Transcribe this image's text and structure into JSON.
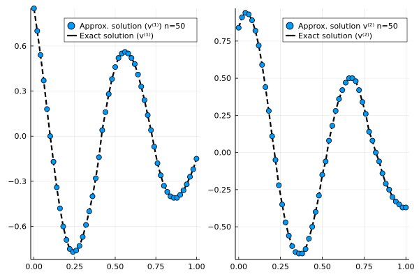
{
  "chart_data": [
    {
      "type": "line",
      "xlim": [
        -0.02,
        1.02
      ],
      "ylim": [
        -0.82,
        0.85
      ],
      "x_ticks": [
        0.0,
        0.25,
        0.5,
        0.75,
        1.0
      ],
      "x_tick_labels": [
        "0.00",
        "0.25",
        "0.50",
        "0.75",
        "1.00"
      ],
      "y_ticks": [
        -0.6,
        -0.3,
        0.0,
        0.3,
        0.6
      ],
      "y_tick_labels": [
        "−0.6",
        "−0.3",
        "0.0",
        "0.3",
        "0.6"
      ],
      "grid": true,
      "legend_position": "top-right",
      "series": [
        {
          "name": "Approx. solution (v⁽¹⁾) n=50",
          "kind": "scatter",
          "color": "#009AFA",
          "x": [
            0.0,
            0.02,
            0.04,
            0.06,
            0.08,
            0.1,
            0.12,
            0.14,
            0.16,
            0.18,
            0.2,
            0.22,
            0.24,
            0.26,
            0.28,
            0.3,
            0.32,
            0.34,
            0.36,
            0.38,
            0.4,
            0.42,
            0.44,
            0.46,
            0.48,
            0.5,
            0.52,
            0.54,
            0.56,
            0.58,
            0.6,
            0.62,
            0.64,
            0.66,
            0.68,
            0.7,
            0.72,
            0.74,
            0.76,
            0.78,
            0.8,
            0.82,
            0.84,
            0.86,
            0.88,
            0.9,
            0.92,
            0.94,
            0.96,
            0.98,
            1.0
          ],
          "y": [
            0.85,
            0.7,
            0.54,
            0.37,
            0.18,
            0.0,
            -0.17,
            -0.34,
            -0.48,
            -0.6,
            -0.69,
            -0.75,
            -0.77,
            -0.76,
            -0.73,
            -0.67,
            -0.59,
            -0.5,
            -0.4,
            -0.28,
            -0.14,
            0.04,
            0.16,
            0.28,
            0.38,
            0.46,
            0.52,
            0.55,
            0.56,
            0.55,
            0.52,
            0.48,
            0.41,
            0.33,
            0.24,
            0.14,
            0.04,
            -0.07,
            -0.18,
            -0.26,
            -0.33,
            -0.37,
            -0.4,
            -0.41,
            -0.41,
            -0.39,
            -0.36,
            -0.32,
            -0.27,
            -0.22,
            -0.15
          ]
        },
        {
          "name": "Exact solution (v⁽¹⁾)",
          "kind": "line",
          "color": "#000000",
          "dash": "dashed",
          "x": [
            0.0,
            0.02,
            0.04,
            0.06,
            0.08,
            0.1,
            0.12,
            0.14,
            0.16,
            0.18,
            0.2,
            0.22,
            0.24,
            0.26,
            0.28,
            0.3,
            0.32,
            0.34,
            0.36,
            0.38,
            0.4,
            0.42,
            0.44,
            0.46,
            0.48,
            0.5,
            0.52,
            0.54,
            0.56,
            0.58,
            0.6,
            0.62,
            0.64,
            0.66,
            0.68,
            0.7,
            0.72,
            0.74,
            0.76,
            0.78,
            0.8,
            0.82,
            0.84,
            0.86,
            0.88,
            0.9,
            0.92,
            0.94,
            0.96,
            0.98,
            1.0
          ],
          "y": [
            0.85,
            0.7,
            0.54,
            0.37,
            0.18,
            0.0,
            -0.17,
            -0.34,
            -0.48,
            -0.6,
            -0.69,
            -0.75,
            -0.77,
            -0.76,
            -0.73,
            -0.67,
            -0.59,
            -0.5,
            -0.4,
            -0.28,
            -0.14,
            0.04,
            0.16,
            0.28,
            0.38,
            0.46,
            0.52,
            0.55,
            0.56,
            0.55,
            0.52,
            0.48,
            0.41,
            0.33,
            0.24,
            0.14,
            0.04,
            -0.07,
            -0.18,
            -0.26,
            -0.33,
            -0.37,
            -0.4,
            -0.41,
            -0.41,
            -0.39,
            -0.36,
            -0.32,
            -0.27,
            -0.22,
            -0.15
          ]
        }
      ]
    },
    {
      "type": "line",
      "xlim": [
        -0.02,
        1.02
      ],
      "ylim": [
        -0.72,
        0.97
      ],
      "x_ticks": [
        0.0,
        0.25,
        0.5,
        0.75,
        1.0
      ],
      "x_tick_labels": [
        "0.00",
        "0.25",
        "0.50",
        "0.75",
        "1.00"
      ],
      "y_ticks": [
        -0.5,
        -0.25,
        0.0,
        0.25,
        0.5,
        0.75
      ],
      "y_tick_labels": [
        "−0.50",
        "−0.25",
        "0.00",
        "0.25",
        "0.50",
        "0.75"
      ],
      "grid": true,
      "legend_position": "top-right",
      "series": [
        {
          "name": "Approx. solution v⁽²⁾ n=50",
          "kind": "scatter",
          "color": "#009AFA",
          "x": [
            0.0,
            0.02,
            0.04,
            0.06,
            0.08,
            0.1,
            0.12,
            0.14,
            0.16,
            0.18,
            0.2,
            0.22,
            0.24,
            0.26,
            0.28,
            0.3,
            0.32,
            0.34,
            0.36,
            0.38,
            0.4,
            0.42,
            0.44,
            0.46,
            0.48,
            0.5,
            0.52,
            0.54,
            0.56,
            0.58,
            0.6,
            0.62,
            0.64,
            0.66,
            0.68,
            0.7,
            0.72,
            0.74,
            0.76,
            0.78,
            0.8,
            0.82,
            0.84,
            0.86,
            0.88,
            0.9,
            0.92,
            0.94,
            0.96,
            0.98,
            1.0
          ],
          "y": [
            0.84,
            0.91,
            0.94,
            0.93,
            0.89,
            0.82,
            0.72,
            0.59,
            0.44,
            0.28,
            0.11,
            -0.05,
            -0.22,
            -0.35,
            -0.47,
            -0.56,
            -0.63,
            -0.67,
            -0.68,
            -0.68,
            -0.65,
            -0.58,
            -0.5,
            -0.4,
            -0.29,
            -0.15,
            -0.06,
            0.08,
            0.18,
            0.28,
            0.36,
            0.42,
            0.47,
            0.5,
            0.5,
            0.48,
            0.42,
            0.34,
            0.26,
            0.14,
            0.08,
            0.0,
            -0.06,
            -0.14,
            -0.21,
            -0.25,
            -0.3,
            -0.33,
            -0.35,
            -0.37,
            -0.37
          ]
        },
        {
          "name": "Exact solution (v⁽²⁾)",
          "kind": "line",
          "color": "#000000",
          "dash": "dashed",
          "x": [
            0.0,
            0.02,
            0.04,
            0.06,
            0.08,
            0.1,
            0.12,
            0.14,
            0.16,
            0.18,
            0.2,
            0.22,
            0.24,
            0.26,
            0.28,
            0.3,
            0.32,
            0.34,
            0.36,
            0.38,
            0.4,
            0.42,
            0.44,
            0.46,
            0.48,
            0.5,
            0.52,
            0.54,
            0.56,
            0.58,
            0.6,
            0.62,
            0.64,
            0.66,
            0.68,
            0.7,
            0.72,
            0.74,
            0.76,
            0.78,
            0.8,
            0.82,
            0.84,
            0.86,
            0.88,
            0.9,
            0.92,
            0.94,
            0.96,
            0.98,
            1.0
          ],
          "y": [
            0.84,
            0.91,
            0.94,
            0.93,
            0.89,
            0.82,
            0.72,
            0.59,
            0.44,
            0.28,
            0.11,
            -0.05,
            -0.22,
            -0.35,
            -0.47,
            -0.56,
            -0.63,
            -0.67,
            -0.68,
            -0.68,
            -0.65,
            -0.58,
            -0.5,
            -0.4,
            -0.29,
            -0.15,
            -0.06,
            0.08,
            0.18,
            0.28,
            0.36,
            0.42,
            0.47,
            0.5,
            0.5,
            0.48,
            0.42,
            0.34,
            0.26,
            0.14,
            0.08,
            0.0,
            -0.06,
            -0.14,
            -0.21,
            -0.25,
            -0.3,
            -0.33,
            -0.35,
            -0.37,
            -0.37
          ]
        }
      ]
    }
  ]
}
